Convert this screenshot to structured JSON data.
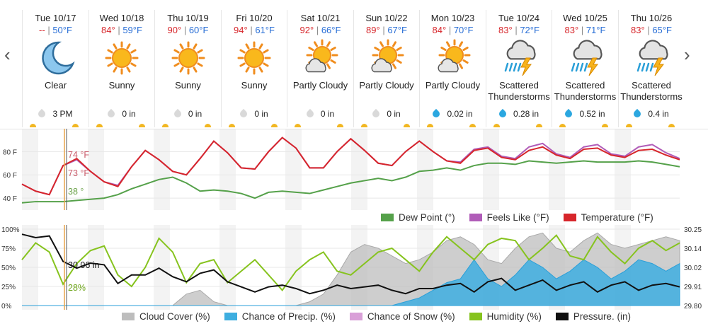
{
  "nav": {
    "prev_glyph": "‹",
    "next_glyph": "›"
  },
  "days": [
    {
      "date": "Tue 10/17",
      "hi": "--",
      "lo": "50°F",
      "cond": "Clear",
      "icon": "moon-icon",
      "precip": "3 PM",
      "wet": false
    },
    {
      "date": "Wed 10/18",
      "hi": "84°",
      "lo": "59°F",
      "cond": "Sunny",
      "icon": "sun-icon",
      "precip": "0 in",
      "wet": false
    },
    {
      "date": "Thu 10/19",
      "hi": "90°",
      "lo": "60°F",
      "cond": "Sunny",
      "icon": "sun-icon",
      "precip": "0 in",
      "wet": false
    },
    {
      "date": "Fri 10/20",
      "hi": "94°",
      "lo": "61°F",
      "cond": "Sunny",
      "icon": "sun-icon",
      "precip": "0 in",
      "wet": false
    },
    {
      "date": "Sat 10/21",
      "hi": "92°",
      "lo": "66°F",
      "cond": "Partly Cloudy",
      "icon": "partly-cloudy-icon",
      "precip": "0 in",
      "wet": false
    },
    {
      "date": "Sun 10/22",
      "hi": "89°",
      "lo": "67°F",
      "cond": "Partly Cloudy",
      "icon": "partly-cloudy-icon",
      "precip": "0 in",
      "wet": false
    },
    {
      "date": "Mon 10/23",
      "hi": "84°",
      "lo": "70°F",
      "cond": "Partly Cloudy",
      "icon": "partly-cloudy-icon",
      "precip": "0.02 in",
      "wet": true
    },
    {
      "date": "Tue 10/24",
      "hi": "83°",
      "lo": "72°F",
      "cond": "Scattered Thunderstorms",
      "icon": "thunderstorm-icon",
      "precip": "0.28 in",
      "wet": true
    },
    {
      "date": "Wed 10/25",
      "hi": "83°",
      "lo": "71°F",
      "cond": "Scattered Thunderstorms",
      "icon": "thunderstorm-icon",
      "precip": "0.52 in",
      "wet": true
    },
    {
      "date": "Thu 10/26",
      "hi": "83°",
      "lo": "65°F",
      "cond": "Scattered Thunderstorms",
      "icon": "thunderstorm-icon",
      "precip": "0.4 in",
      "wet": true
    }
  ],
  "colors": {
    "temperature": "#d7262b",
    "feels_like": "#b05cb8",
    "dew_point": "#55a14a",
    "cloud": "#bdbdbd",
    "precip": "#3eaee0",
    "snow": "#d9a0d8",
    "humidity": "#86c31e",
    "pressure": "#111111"
  },
  "chart_data": [
    {
      "type": "line",
      "y_ticks": [
        "80 F",
        "60 F",
        "40 F"
      ],
      "ylim": [
        34,
        96
      ],
      "cursor_readouts": {
        "temperature": "74 °F",
        "feels_like": "73 °F",
        "dew_point": "38 °"
      },
      "legend": [
        "Dew Point (°)",
        "Feels Like (°F)",
        "Temperature (°F)"
      ],
      "series": [
        {
          "name": "Temperature (°F)",
          "key": "temperature",
          "values": [
            52,
            46,
            43,
            68,
            74,
            63,
            54,
            50,
            67,
            81,
            73,
            63,
            60,
            74,
            89,
            79,
            66,
            65,
            80,
            92,
            83,
            66,
            66,
            80,
            91,
            81,
            70,
            68,
            80,
            89,
            80,
            72,
            70,
            81,
            83,
            75,
            73,
            81,
            84,
            77,
            74,
            82,
            83,
            77,
            75,
            81,
            82,
            77,
            73
          ]
        },
        {
          "name": "Feels Like (°F)",
          "key": "feels_like",
          "values": [
            52,
            46,
            43,
            68,
            73,
            63,
            54,
            51,
            67,
            81,
            73,
            63,
            60,
            74,
            89,
            79,
            66,
            65,
            80,
            92,
            83,
            66,
            66,
            80,
            91,
            81,
            70,
            68,
            80,
            89,
            80,
            72,
            71,
            82,
            84,
            76,
            74,
            84,
            87,
            78,
            75,
            84,
            86,
            78,
            76,
            84,
            86,
            79,
            74
          ]
        },
        {
          "name": "Dew Point (°)",
          "key": "dew_point",
          "values": [
            36,
            37,
            37,
            37,
            38,
            39,
            40,
            43,
            48,
            52,
            56,
            58,
            53,
            46,
            47,
            46,
            44,
            40,
            45,
            46,
            45,
            44,
            47,
            50,
            53,
            55,
            57,
            55,
            58,
            63,
            64,
            66,
            64,
            68,
            70,
            70,
            69,
            72,
            71,
            70,
            71,
            72,
            71,
            71,
            71,
            72,
            71,
            69,
            67
          ]
        }
      ]
    },
    {
      "type": "area",
      "y_ticks_left": [
        "100%",
        "75%",
        "50%",
        "25%",
        "0%"
      ],
      "y_ticks_right": [
        "30.25",
        "30.14",
        "30.02",
        "29.91",
        "29.80"
      ],
      "ylim_left": [
        0,
        100
      ],
      "ylim_right": [
        29.8,
        30.25
      ],
      "cursor_readouts": {
        "pressure": "30.06 in",
        "humidity": "28%"
      },
      "legend": [
        "Cloud Cover (%)",
        "Chance of Precip. (%)",
        "Chance of Snow (%)",
        "Humidity (%)",
        "Pressure. (in)"
      ],
      "series": [
        {
          "name": "Cloud Cover (%)",
          "key": "cloud",
          "values": [
            0,
            0,
            0,
            0,
            0,
            0,
            0,
            0,
            0,
            0,
            0,
            0,
            15,
            20,
            5,
            0,
            0,
            0,
            0,
            0,
            0,
            5,
            15,
            40,
            70,
            80,
            75,
            65,
            55,
            60,
            70,
            85,
            90,
            80,
            60,
            55,
            75,
            90,
            95,
            75,
            70,
            85,
            95,
            80,
            75,
            80,
            85,
            90,
            85
          ]
        },
        {
          "name": "Chance of Precip. (%)",
          "key": "precip",
          "values": [
            0,
            0,
            0,
            0,
            0,
            0,
            0,
            0,
            0,
            0,
            0,
            0,
            0,
            0,
            0,
            0,
            0,
            0,
            0,
            0,
            0,
            0,
            0,
            0,
            0,
            0,
            0,
            0,
            5,
            10,
            20,
            30,
            35,
            60,
            35,
            25,
            40,
            60,
            50,
            35,
            45,
            60,
            50,
            35,
            45,
            60,
            55,
            45,
            55
          ]
        },
        {
          "name": "Humidity (%)",
          "key": "humidity",
          "values": [
            60,
            82,
            70,
            28,
            55,
            72,
            78,
            40,
            25,
            50,
            88,
            70,
            30,
            55,
            60,
            30,
            45,
            60,
            40,
            20,
            45,
            60,
            70,
            45,
            40,
            55,
            70,
            75,
            60,
            45,
            70,
            90,
            75,
            60,
            80,
            88,
            85,
            60,
            75,
            92,
            65,
            60,
            90,
            70,
            55,
            75,
            85,
            72,
            82
          ]
        },
        {
          "name": "Pressure. (in)",
          "key": "pressure",
          "values": [
            30.22,
            30.2,
            30.21,
            30.06,
            30.02,
            30.05,
            30.04,
            29.93,
            29.98,
            29.98,
            30.02,
            29.97,
            29.94,
            29.99,
            30.01,
            29.94,
            29.91,
            29.88,
            29.91,
            29.92,
            29.9,
            29.87,
            29.89,
            29.92,
            29.9,
            29.91,
            29.92,
            29.89,
            29.87,
            29.9,
            29.9,
            29.92,
            29.93,
            29.88,
            29.94,
            29.96,
            29.89,
            29.92,
            29.95,
            29.89,
            29.92,
            29.94,
            29.88,
            29.92,
            29.94,
            29.89,
            29.92,
            29.93,
            29.91
          ]
        }
      ]
    }
  ]
}
